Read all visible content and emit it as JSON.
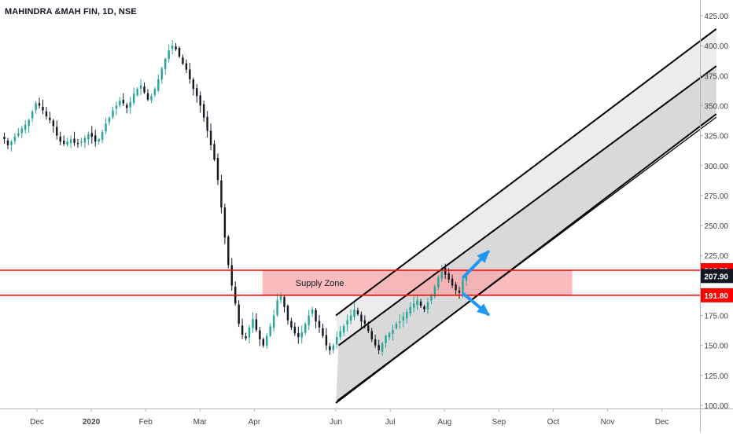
{
  "header": {
    "symbol_title": "MAHINDRA &MAH FIN, 1D, NSE"
  },
  "colors": {
    "candle_up": "#26a69a",
    "candle_down": "#131722",
    "level_line": "#ff0000",
    "zone_fill": "#f8a5a5",
    "channel_line": "#000000",
    "channel_fill": "#d9d9d9",
    "arrow": "#2196f3",
    "axis_text": "#444444",
    "tag_bg": "#ff0000",
    "tag_dark_bg": "#131722"
  },
  "chart_data": {
    "type": "candlestick",
    "title": "MAHINDRA &MAH FIN, 1D, NSE",
    "y_axis": {
      "range": [
        98,
        430
      ],
      "ticks": [
        "425.00",
        "400.00",
        "375.00",
        "350.00",
        "325.00",
        "300.00",
        "275.00",
        "250.00",
        "225.00",
        "175.00",
        "150.00",
        "125.00",
        "100.00"
      ],
      "tick_values": [
        425,
        400,
        375,
        350,
        325,
        300,
        275,
        250,
        225,
        175,
        150,
        125,
        100
      ],
      "side": "right"
    },
    "x_axis": {
      "labels": [
        "Dec",
        "2020",
        "Feb",
        "Mar",
        "Apr",
        "Jun",
        "Jul",
        "Aug",
        "Sep",
        "Oct",
        "Nov",
        "Dec"
      ],
      "label_index": [
        0,
        2,
        4,
        6,
        8,
        11,
        13,
        15,
        17,
        19,
        21,
        23
      ],
      "bold_labels": [
        "2020"
      ]
    },
    "price_levels": [
      {
        "label": "212.70",
        "value": 212.7
      },
      {
        "label": "191.80",
        "value": 191.8
      }
    ],
    "current_price": {
      "label": "207.90",
      "value": 207.9
    },
    "supply_zone": {
      "label": "Supply Zone",
      "top": 212.7,
      "bottom": 191.8,
      "x_from": 8.3,
      "x_to": 19.7
    },
    "channel": {
      "description": "ascending parallel channel",
      "upper": [
        [
          11.0,
          175
        ],
        [
          25.0,
          414
        ]
      ],
      "middle": [
        [
          11.1,
          150
        ],
        [
          25.0,
          383
        ]
      ],
      "lower": [
        [
          11.0,
          102
        ],
        [
          25.0,
          343
        ]
      ]
    },
    "arrows": [
      {
        "direction": "up",
        "from": [
          15.7,
          207
        ],
        "to": [
          16.6,
          228
        ]
      },
      {
        "direction": "down",
        "from": [
          15.7,
          193
        ],
        "to": [
          16.6,
          176
        ]
      }
    ],
    "candles_x_range": [
      -1.2,
      15.8
    ],
    "close": [
      322,
      317,
      320,
      324,
      327,
      331,
      334,
      338,
      345,
      352,
      350,
      346,
      341,
      338,
      333,
      325,
      320,
      318,
      320,
      322,
      319,
      318,
      320,
      323,
      326,
      324,
      320,
      322,
      328,
      335,
      340,
      346,
      350,
      354,
      352,
      348,
      353,
      360,
      364,
      367,
      361,
      355,
      358,
      364,
      372,
      381,
      389,
      396,
      400,
      397,
      391,
      385,
      380,
      372,
      364,
      358,
      350,
      340,
      329,
      317,
      305,
      288,
      265,
      240,
      217,
      200,
      185,
      168,
      159,
      156,
      165,
      172,
      163,
      155,
      150,
      158,
      166,
      175,
      188,
      192,
      182,
      171,
      165,
      160,
      157,
      161,
      168,
      175,
      180,
      170,
      165,
      158,
      150,
      146,
      150,
      157,
      162,
      166,
      171,
      175,
      180,
      176,
      170,
      168,
      162,
      155,
      150,
      146,
      152,
      158,
      160,
      163,
      168,
      170,
      174,
      178,
      182,
      185,
      188,
      183,
      180,
      186,
      192,
      199,
      207,
      214,
      209,
      205,
      200,
      196,
      194,
      205,
      207.9
    ]
  }
}
